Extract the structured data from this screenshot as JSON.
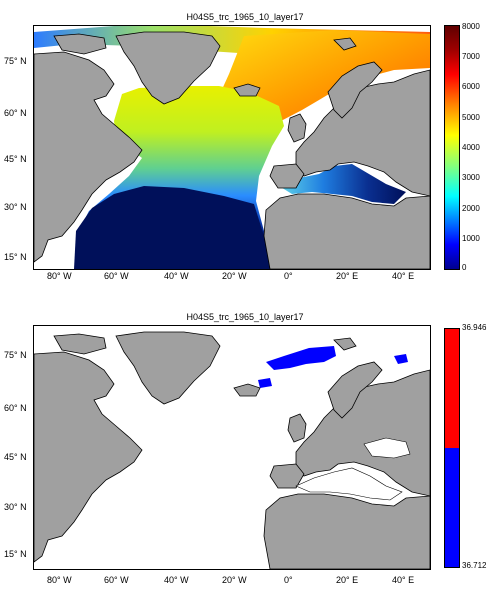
{
  "panels": [
    {
      "title": "H04S5_trc_1965_10_layer17",
      "colorbar": {
        "labels": [
          "8000",
          "7000",
          "6000",
          "5000",
          "4000",
          "3000",
          "2000",
          "1000",
          "0"
        ]
      }
    },
    {
      "title": "H04S5_trc_1965_10_layer17",
      "colorbar": {
        "labels": [
          "36.946",
          "36.712"
        ]
      }
    }
  ],
  "lat_labels": [
    "75° N",
    "60° N",
    "45° N",
    "30° N",
    "15° N"
  ],
  "lon_labels": [
    "80° W",
    "60° W",
    "40° W",
    "20° W",
    "0°",
    "20° E",
    "40° E"
  ],
  "colors": {
    "land": "#a0a0a0",
    "deep": "#00105a",
    "high_band": "#ff0000",
    "low_band": "#0000ff"
  }
}
